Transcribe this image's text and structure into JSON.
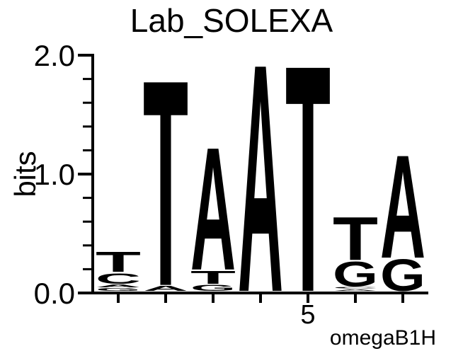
{
  "chart_data": {
    "type": "sequence-logo",
    "title": "Lab_SOLEXA",
    "ylabel": "bits",
    "annotation": "omegaB1H",
    "ylim": [
      0.0,
      2.0
    ],
    "y_ticks": [
      {
        "value": 0.0,
        "label": "0.0"
      },
      {
        "value": 1.0,
        "label": "1.0"
      },
      {
        "value": 2.0,
        "label": "2.0"
      }
    ],
    "y_minor_tick_step": 0.2,
    "x_tick_labels": [
      "",
      "",
      "",
      "",
      "5",
      "",
      ""
    ],
    "colors": {
      "A": "#008000",
      "C": "#0000E6",
      "G": "#FFA500",
      "T": "#FF0000"
    },
    "positions": [
      {
        "pos": 1,
        "stack": [
          {
            "base": "G",
            "bits": 0.03
          },
          {
            "base": "A",
            "bits": 0.03
          },
          {
            "base": "C",
            "bits": 0.1
          },
          {
            "base": "T",
            "bits": 0.18
          }
        ]
      },
      {
        "pos": 2,
        "stack": [
          {
            "base": "A",
            "bits": 0.05
          },
          {
            "base": "T",
            "bits": 1.79
          }
        ]
      },
      {
        "pos": 3,
        "stack": [
          {
            "base": "G",
            "bits": 0.06
          },
          {
            "base": "T",
            "bits": 0.12
          },
          {
            "base": "A",
            "bits": 1.07
          }
        ]
      },
      {
        "pos": 4,
        "stack": [
          {
            "base": "A",
            "bits": 1.98
          }
        ]
      },
      {
        "pos": 5,
        "stack": [
          {
            "base": "T",
            "bits": 1.97
          }
        ]
      },
      {
        "pos": 6,
        "stack": [
          {
            "base": "A",
            "bits": 0.02
          },
          {
            "base": "C",
            "bits": 0.02
          },
          {
            "base": "G",
            "bits": 0.22
          },
          {
            "base": "T",
            "bits": 0.38
          }
        ]
      },
      {
        "pos": 7,
        "stack": [
          {
            "base": "G",
            "bits": 0.28
          },
          {
            "base": "A",
            "bits": 0.9
          }
        ]
      }
    ]
  }
}
